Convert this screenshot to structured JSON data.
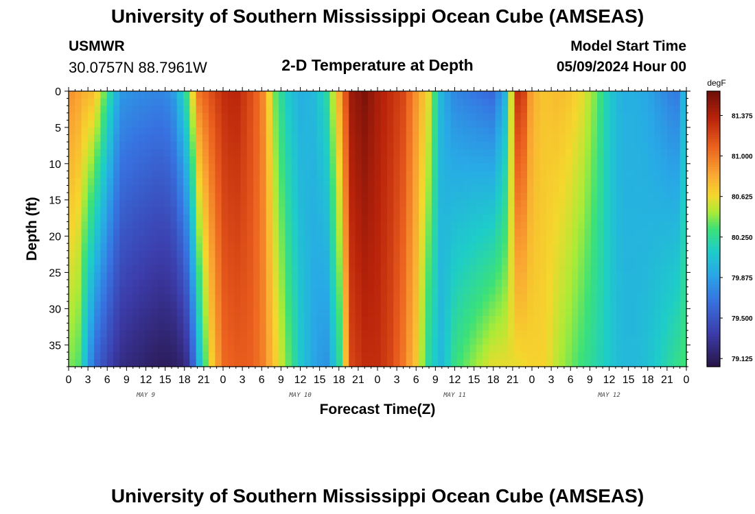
{
  "header": {
    "title": "University of Southern Mississippi Ocean Cube (AMSEAS)",
    "station": "USMWR",
    "coordinates": "30.0757N  88.7961W",
    "subtitle": "2-D Temperature at Depth",
    "start_label": "Model Start Time",
    "start_value": "05/09/2024 Hour 00"
  },
  "footer": {
    "title": "University of Southern Mississippi Ocean Cube (AMSEAS)"
  },
  "chart_data": {
    "type": "heatmap",
    "title": "2-D Temperature at Depth",
    "xlabel": "Forecast Time(Z)",
    "ylabel": "Depth (ft)",
    "colorbar_unit": "degF",
    "xlim": [
      0,
      96
    ],
    "ylim": [
      0,
      38
    ],
    "x_ticks": [
      0,
      3,
      6,
      9,
      12,
      15,
      18,
      21,
      24,
      27,
      30,
      33,
      36,
      39,
      42,
      45,
      48,
      51,
      54,
      57,
      60,
      63,
      66,
      69,
      72,
      75,
      78,
      81,
      84,
      87,
      90,
      93,
      96
    ],
    "x_tick_labels": [
      "0",
      "3",
      "6",
      "9",
      "12",
      "15",
      "18",
      "21",
      "0",
      "3",
      "6",
      "9",
      "12",
      "15",
      "18",
      "21",
      "0",
      "3",
      "6",
      "9",
      "12",
      "15",
      "18",
      "21",
      "0",
      "3",
      "6",
      "9",
      "12",
      "15",
      "18",
      "21",
      "0"
    ],
    "y_ticks": [
      0,
      5,
      10,
      15,
      20,
      25,
      30,
      35
    ],
    "y_tick_labels": [
      "0",
      "5",
      "10",
      "15",
      "20",
      "25",
      "30",
      "35"
    ],
    "date_labels": [
      {
        "hour": 12,
        "label": "MAY 9"
      },
      {
        "hour": 36,
        "label": "MAY 10"
      },
      {
        "hour": 60,
        "label": "MAY 11"
      },
      {
        "hour": 84,
        "label": "MAY 12"
      }
    ],
    "colorbar_ticks": [
      79.125,
      79.5,
      79.875,
      80.25,
      80.625,
      81.0,
      81.375
    ],
    "colorbar_tick_labels": [
      "79.125",
      "79.500",
      "79.875",
      "80.250",
      "80.625",
      "81.000",
      "81.375"
    ],
    "vmin": 79.05,
    "vmax": 81.6,
    "surface_temperature_profile": {
      "hours": [
        0,
        1,
        2,
        4,
        6,
        8,
        10,
        14,
        16,
        18,
        19,
        20,
        22,
        24,
        26,
        28,
        30,
        32,
        34,
        36,
        38,
        40,
        42,
        44,
        46,
        48,
        50,
        52,
        54,
        56,
        58,
        60,
        62,
        64,
        66,
        68,
        70,
        72,
        74,
        76,
        78,
        80,
        82,
        84,
        86,
        88,
        90,
        92,
        94,
        95,
        96
      ],
      "temps": [
        80.9,
        80.9,
        80.8,
        80.75,
        80.3,
        79.85,
        79.8,
        79.75,
        79.8,
        80.2,
        80.5,
        81.0,
        81.15,
        81.3,
        81.35,
        81.2,
        81.0,
        80.4,
        80.1,
        79.95,
        80.0,
        80.2,
        80.8,
        81.45,
        81.55,
        81.4,
        81.3,
        81.2,
        80.9,
        80.6,
        79.95,
        79.75,
        79.7,
        79.65,
        79.6,
        80.0,
        81.45,
        80.8,
        80.7,
        80.75,
        80.7,
        80.6,
        80.4,
        80.1,
        79.95,
        79.95,
        79.9,
        79.8,
        79.7,
        79.7,
        80.2
      ]
    },
    "bottom_temperature_profile": {
      "hours": [
        0,
        1,
        2,
        4,
        6,
        8,
        10,
        14,
        16,
        18,
        19,
        20,
        22,
        24,
        26,
        28,
        30,
        32,
        34,
        36,
        38,
        40,
        42,
        44,
        46,
        48,
        50,
        52,
        54,
        56,
        58,
        60,
        62,
        64,
        66,
        68,
        70,
        72,
        74,
        76,
        78,
        80,
        82,
        84,
        86,
        88,
        90,
        92,
        94,
        95,
        96
      ],
      "temps": [
        80.3,
        80.5,
        80.2,
        79.6,
        79.4,
        79.25,
        79.2,
        79.12,
        79.12,
        79.2,
        79.4,
        79.9,
        80.6,
        81.05,
        81.1,
        81.1,
        81.0,
        80.7,
        80.4,
        80.1,
        79.9,
        79.8,
        80.2,
        81.2,
        81.3,
        81.3,
        81.2,
        81.0,
        80.7,
        80.2,
        80.0,
        80.3,
        80.4,
        80.5,
        80.6,
        80.6,
        80.6,
        80.65,
        80.65,
        80.5,
        80.4,
        80.3,
        80.2,
        80.1,
        80.0,
        80.0,
        80.05,
        80.15,
        80.25,
        80.3,
        80.35
      ]
    }
  }
}
